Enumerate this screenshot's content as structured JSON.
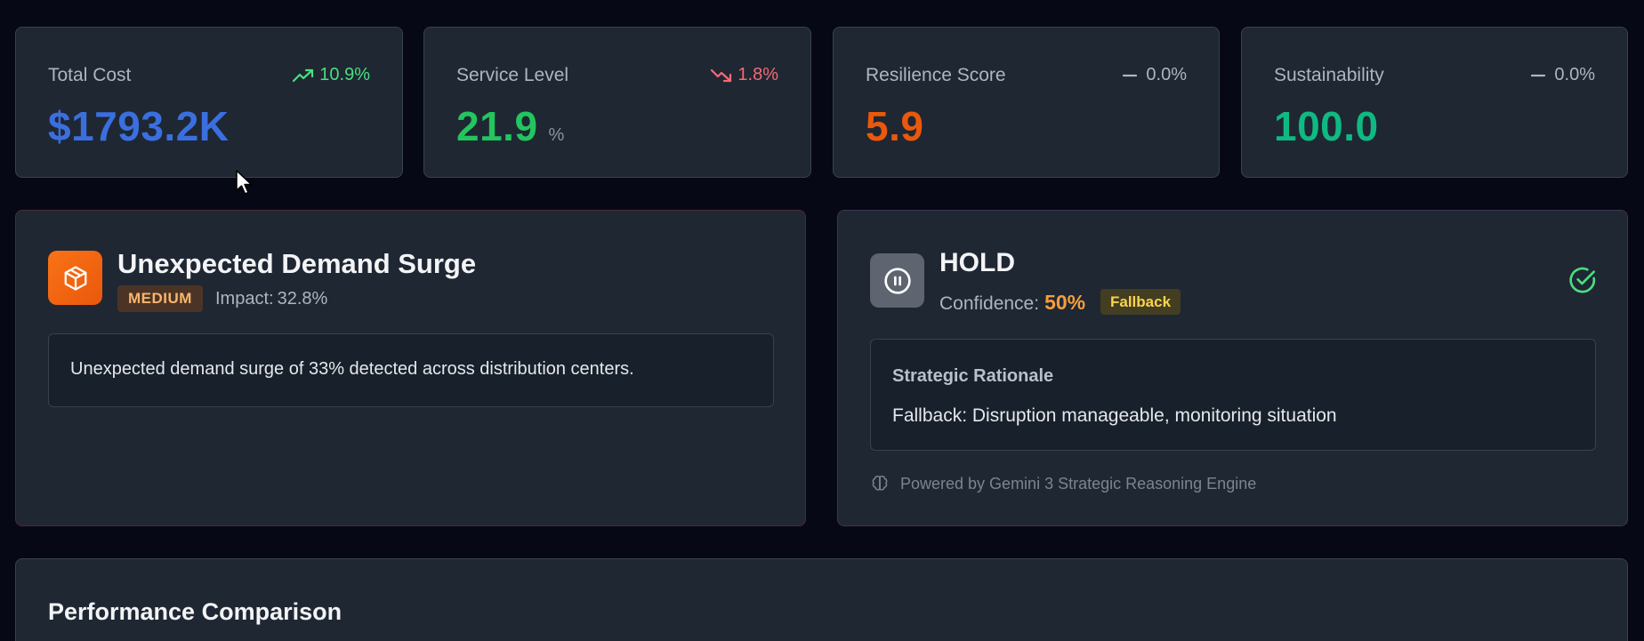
{
  "kpis": [
    {
      "label": "Total Cost",
      "value": "$1793.2K",
      "unit": "",
      "trend": "10.9%",
      "trend_dir": "up",
      "value_color": "#3b6fe0"
    },
    {
      "label": "Service Level",
      "value": "21.9",
      "unit": "%",
      "trend": "1.8%",
      "trend_dir": "down",
      "value_color": "#22c55e"
    },
    {
      "label": "Resilience Score",
      "value": "5.9",
      "unit": "",
      "trend": "0.0%",
      "trend_dir": "flat",
      "value_color": "#ea580c"
    },
    {
      "label": "Sustainability",
      "value": "100.0",
      "unit": "",
      "trend": "0.0%",
      "trend_dir": "flat",
      "value_color": "#10b981"
    }
  ],
  "disruption": {
    "icon": "package-icon",
    "title": "Unexpected Demand Surge",
    "severity": "MEDIUM",
    "impact_label": "Impact:",
    "impact_value": "32.8%",
    "description": "Unexpected demand surge of 33% detected across distribution centers."
  },
  "decision": {
    "icon": "pause-icon",
    "action": "HOLD",
    "confidence_label": "Confidence:",
    "confidence_value": "50%",
    "badge": "Fallback",
    "status_icon": "check-circle-icon",
    "rationale_title": "Strategic Rationale",
    "rationale_text": "Fallback: Disruption manageable, monitoring situation",
    "powered_by": "Powered by Gemini 3 Strategic Reasoning Engine"
  },
  "performance": {
    "title": "Performance Comparison"
  }
}
